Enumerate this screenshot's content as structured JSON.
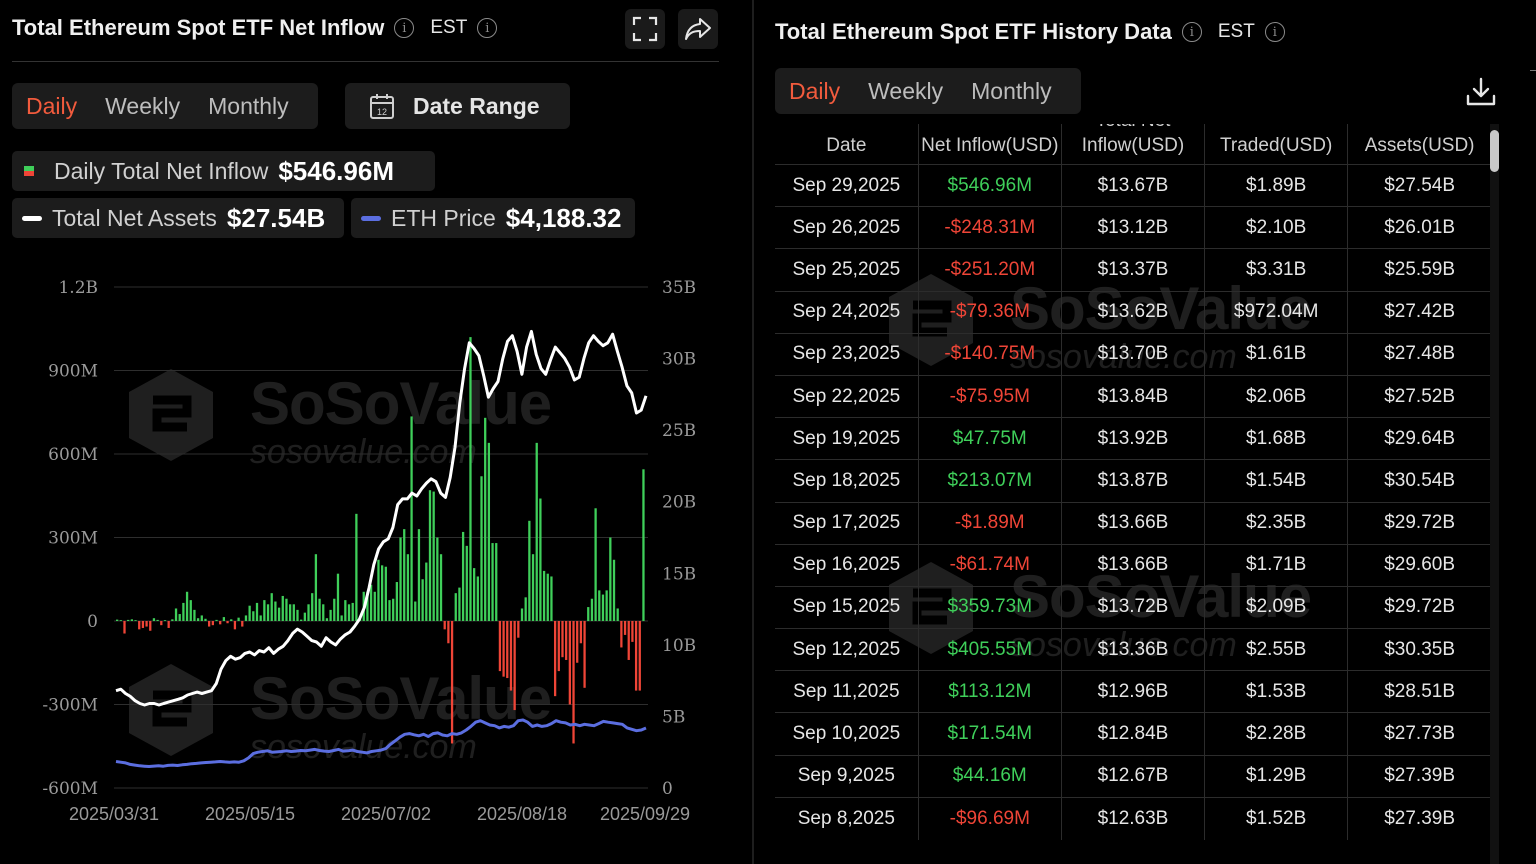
{
  "left": {
    "title": "Total Ethereum Spot ETF Net Inflow",
    "timezone": "EST",
    "tabs": [
      {
        "label": "Daily",
        "active": true
      },
      {
        "label": "Weekly",
        "active": false
      },
      {
        "label": "Monthly",
        "active": false
      }
    ],
    "date_range_label": "Date Range",
    "calendar_icon_day": "12",
    "legend": {
      "daily_inflow_label": "Daily Total Net Inflow",
      "daily_inflow_value": "$546.96M",
      "net_assets_label": "Total Net Assets",
      "net_assets_value": "$27.54B",
      "eth_price_label": "ETH Price",
      "eth_price_value": "$4,188.32"
    },
    "icons": [
      "info-icon",
      "fullscreen-icon",
      "share-icon",
      "calendar-icon"
    ]
  },
  "right": {
    "title": "Total Ethereum Spot ETF History Data",
    "timezone": "EST",
    "tabs": [
      {
        "label": "Daily",
        "active": true
      },
      {
        "label": "Weekly",
        "active": false
      },
      {
        "label": "Monthly",
        "active": false
      }
    ],
    "columns": [
      "Date",
      "Net Inflow(USD)",
      "Total Net Inflow(USD)",
      "Traded(USD)",
      "Assets(USD)"
    ],
    "rows": [
      {
        "date": "Sep 29,2025",
        "inflow": "$546.96M",
        "sign": "pos",
        "total": "$13.67B",
        "traded": "$1.89B",
        "assets": "$27.54B"
      },
      {
        "date": "Sep 26,2025",
        "inflow": "-$248.31M",
        "sign": "neg",
        "total": "$13.12B",
        "traded": "$2.10B",
        "assets": "$26.01B"
      },
      {
        "date": "Sep 25,2025",
        "inflow": "-$251.20M",
        "sign": "neg",
        "total": "$13.37B",
        "traded": "$3.31B",
        "assets": "$25.59B"
      },
      {
        "date": "Sep 24,2025",
        "inflow": "-$79.36M",
        "sign": "neg",
        "total": "$13.62B",
        "traded": "$972.04M",
        "assets": "$27.42B"
      },
      {
        "date": "Sep 23,2025",
        "inflow": "-$140.75M",
        "sign": "neg",
        "total": "$13.70B",
        "traded": "$1.61B",
        "assets": "$27.48B"
      },
      {
        "date": "Sep 22,2025",
        "inflow": "-$75.95M",
        "sign": "neg",
        "total": "$13.84B",
        "traded": "$2.06B",
        "assets": "$27.52B"
      },
      {
        "date": "Sep 19,2025",
        "inflow": "$47.75M",
        "sign": "pos",
        "total": "$13.92B",
        "traded": "$1.68B",
        "assets": "$29.64B"
      },
      {
        "date": "Sep 18,2025",
        "inflow": "$213.07M",
        "sign": "pos",
        "total": "$13.87B",
        "traded": "$1.54B",
        "assets": "$30.54B"
      },
      {
        "date": "Sep 17,2025",
        "inflow": "-$1.89M",
        "sign": "neg",
        "total": "$13.66B",
        "traded": "$2.35B",
        "assets": "$29.72B"
      },
      {
        "date": "Sep 16,2025",
        "inflow": "-$61.74M",
        "sign": "neg",
        "total": "$13.66B",
        "traded": "$1.71B",
        "assets": "$29.60B"
      },
      {
        "date": "Sep 15,2025",
        "inflow": "$359.73M",
        "sign": "pos",
        "total": "$13.72B",
        "traded": "$2.09B",
        "assets": "$29.72B"
      },
      {
        "date": "Sep 12,2025",
        "inflow": "$405.55M",
        "sign": "pos",
        "total": "$13.36B",
        "traded": "$2.55B",
        "assets": "$30.35B"
      },
      {
        "date": "Sep 11,2025",
        "inflow": "$113.12M",
        "sign": "pos",
        "total": "$12.96B",
        "traded": "$1.53B",
        "assets": "$28.51B"
      },
      {
        "date": "Sep 10,2025",
        "inflow": "$171.54M",
        "sign": "pos",
        "total": "$12.84B",
        "traded": "$2.28B",
        "assets": "$27.73B"
      },
      {
        "date": "Sep 9,2025",
        "inflow": "$44.16M",
        "sign": "pos",
        "total": "$12.67B",
        "traded": "$1.29B",
        "assets": "$27.39B"
      },
      {
        "date": "Sep 8,2025",
        "inflow": "-$96.69M",
        "sign": "neg",
        "total": "$12.63B",
        "traded": "$1.52B",
        "assets": "$27.39B"
      }
    ],
    "icons": [
      "info-icon",
      "download-icon"
    ]
  },
  "watermark": {
    "brand": "SoSoValue",
    "site": "sosovalue.com"
  },
  "colors": {
    "accent": "#f25b3d",
    "positive": "#3fcf5a",
    "negative": "#ef4537",
    "eth_price": "#5b6ee0",
    "net_assets": "#ffffff"
  },
  "chart_data": {
    "type": "bar",
    "title": "",
    "xlabel": "",
    "ylabel": "",
    "x_tick_labels": [
      "2025/03/31",
      "2025/05/15",
      "2025/07/02",
      "2025/08/18",
      "2025/09/29"
    ],
    "y_left_ticks": [
      "1.2B",
      "900M",
      "600M",
      "300M",
      "0",
      "-300M",
      "-600M"
    ],
    "y_left_range": [
      -600,
      1200
    ],
    "y_left_unit": "M",
    "y_right_ticks": [
      "35B",
      "30B",
      "25B",
      "20B",
      "15B",
      "10B",
      "5B",
      "0"
    ],
    "y_right_range": [
      0,
      35
    ],
    "y_right_unit": "B",
    "grid": true,
    "series": [
      {
        "name": "Daily Total Net Inflow",
        "kind": "bar",
        "values": [
          5,
          3,
          -45,
          4,
          6,
          3,
          -30,
          -25,
          -20,
          -35,
          10,
          4,
          -15,
          3,
          -25,
          6,
          45,
          25,
          65,
          105,
          75,
          40,
          10,
          20,
          8,
          -20,
          -15,
          4,
          -12,
          14,
          -8,
          6,
          -30,
          12,
          -20,
          20,
          55,
          35,
          65,
          20,
          75,
          60,
          100,
          70,
          48,
          90,
          80,
          60,
          60,
          40,
          5,
          30,
          60,
          100,
          240,
          80,
          60,
          10,
          40,
          80,
          170,
          20,
          75,
          60,
          65,
          385,
          15,
          105,
          105,
          130,
          105,
          220,
          200,
          195,
          75,
          80,
          140,
          300,
          330,
          240,
          735,
          70,
          330,
          150,
          210,
          470,
          465,
          300,
          240,
          -30,
          -80,
          -440,
          100,
          120,
          320,
          270,
          1020,
          190,
          160,
          520,
          730,
          640,
          280,
          280,
          -180,
          -200,
          -205,
          -250,
          -320,
          -60,
          45,
          85,
          360,
          240,
          640,
          440,
          180,
          170,
          160,
          -270,
          -180,
          -130,
          -140,
          -300,
          -440,
          -150,
          -80,
          -240,
          50,
          80,
          405,
          110,
          95,
          110,
          300,
          220,
          45,
          -95,
          -50,
          -140,
          -75,
          -250,
          -250,
          545
        ]
      },
      {
        "name": "Total Net Assets",
        "kind": "line",
        "axis": "right",
        "values": [
          6.8,
          6.9,
          6.6,
          6.4,
          6.1,
          5.9,
          5.8,
          5.9,
          5.9,
          5.8,
          5.9,
          6.0,
          6.1,
          6.2,
          6.3,
          6.5,
          6.6,
          6.7,
          6.6,
          6.7,
          6.8,
          7.3,
          8.3,
          8.9,
          9.2,
          9.0,
          9.1,
          9.4,
          9.5,
          9.3,
          9.6,
          9.5,
          9.8,
          9.4,
          9.7,
          9.9,
          10.3,
          10.8,
          11.1,
          10.9,
          10.6,
          10.3,
          10.2,
          9.9,
          10.5,
          10.2,
          10.0,
          10.4,
          10.7,
          10.9,
          11.3,
          11.8,
          12.6,
          14.0,
          15.6,
          16.7,
          17.2,
          17.4,
          18.2,
          19.8,
          20.2,
          20.2,
          20.6,
          20.4,
          20.9,
          21.3,
          21.6,
          21.4,
          20.6,
          20.3,
          21.7,
          23.8,
          26.9,
          29.3,
          31.1,
          30.7,
          30.2,
          28.8,
          27.3,
          27.9,
          28.4,
          30.0,
          31.2,
          31.6,
          30.5,
          28.9,
          30.8,
          31.9,
          30.3,
          29.3,
          28.9,
          29.9,
          30.8,
          30.4,
          30.0,
          29.4,
          28.5,
          28.7,
          30.0,
          31.1,
          31.6,
          31.2,
          30.9,
          31.1,
          31.7,
          30.5,
          29.4,
          28.1,
          27.6,
          26.2,
          26.4,
          27.4
        ]
      },
      {
        "name": "ETH Price",
        "kind": "line",
        "axis": "right",
        "values": [
          1.85,
          1.8,
          1.75,
          1.65,
          1.6,
          1.55,
          1.52,
          1.5,
          1.53,
          1.56,
          1.52,
          1.58,
          1.6,
          1.57,
          1.62,
          1.65,
          1.7,
          1.72,
          1.75,
          1.78,
          1.8,
          1.82,
          1.85,
          1.82,
          1.8,
          1.82,
          1.8,
          1.9,
          2.1,
          2.4,
          2.5,
          2.55,
          2.6,
          2.5,
          2.52,
          2.55,
          2.6,
          2.55,
          2.58,
          2.62,
          2.6,
          2.65,
          2.7,
          2.62,
          2.58,
          2.55,
          2.62,
          2.7,
          2.58,
          2.6,
          2.65,
          2.55,
          2.5,
          2.45,
          2.55,
          2.6,
          2.65,
          2.75,
          3.05,
          3.3,
          3.55,
          3.75,
          3.8,
          3.72,
          3.65,
          3.75,
          3.6,
          3.8,
          3.85,
          3.7,
          3.65,
          3.8,
          3.75,
          3.85,
          4.05,
          4.3,
          4.6,
          4.7,
          4.55,
          4.4,
          4.35,
          4.2,
          4.3,
          4.25,
          4.35,
          4.7,
          4.75,
          4.6,
          4.3,
          4.4,
          4.3,
          4.35,
          4.5,
          4.7,
          4.6,
          4.55,
          4.4,
          4.45,
          4.35,
          4.45,
          4.4,
          4.35,
          4.5,
          4.65,
          4.6,
          4.55,
          4.5,
          4.45,
          4.2,
          4.1,
          4.0,
          4.05,
          4.19
        ]
      }
    ]
  }
}
